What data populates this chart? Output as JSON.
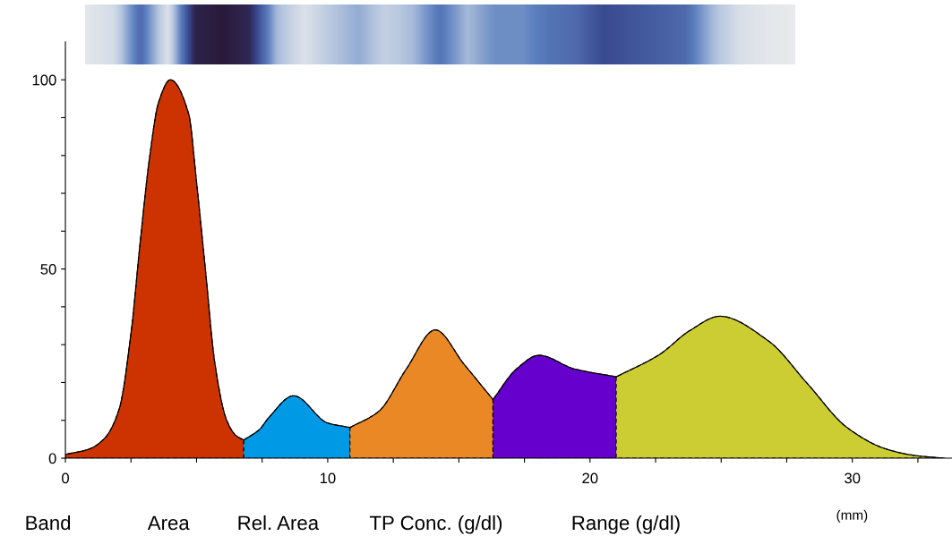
{
  "chart_data": {
    "type": "area",
    "xlabel": "(mm)",
    "xlim": [
      0,
      33.8
    ],
    "ylim": [
      0,
      110
    ],
    "xticks": [
      0,
      {
        "value": 2.5,
        "label": null
      },
      {
        "value": 5,
        "label": null
      },
      {
        "value": 7.5,
        "label": null
      },
      10,
      {
        "value": 12.5,
        "label": null
      },
      {
        "value": 15,
        "label": null
      },
      {
        "value": 17.5,
        "label": null
      },
      20,
      {
        "value": 22.5,
        "label": null
      },
      {
        "value": 25,
        "label": null
      },
      {
        "value": 27.5,
        "label": null
      },
      30,
      {
        "value": 32.5,
        "label": null
      }
    ],
    "yticks": [
      0,
      {
        "value": 10,
        "label": null
      },
      {
        "value": 20,
        "label": null
      },
      {
        "value": 30,
        "label": null
      },
      {
        "value": 40,
        "label": null
      },
      50,
      {
        "value": 60,
        "label": null
      },
      {
        "value": 70,
        "label": null
      },
      {
        "value": 80,
        "label": null
      },
      {
        "value": 90,
        "label": null
      },
      100
    ],
    "grid": false,
    "legend": false,
    "series": [
      {
        "color": "#cc3300",
        "x": [
          0,
          0.9,
          1.5,
          2.05,
          2.5,
          2.85,
          3.2,
          3.55,
          4.0,
          4.7,
          5.0,
          5.35,
          5.7,
          6.15,
          6.5,
          6.8
        ],
        "values": [
          1,
          2.4,
          5.3,
          13,
          33,
          57,
          79,
          94,
          100,
          91,
          73,
          49,
          25,
          10,
          6,
          4.8
        ]
      },
      {
        "color": "#0099e6",
        "x": [
          6.8,
          7.4,
          7.75,
          8.7,
          10.0,
          10.85
        ],
        "values": [
          4.8,
          7.6,
          10.7,
          16.5,
          9.3,
          8.1
        ]
      },
      {
        "color": "#eb8826",
        "x": [
          10.85,
          11.95,
          13.0,
          14.1,
          15.2,
          16.3
        ],
        "values": [
          8.1,
          12.4,
          23.6,
          33.9,
          24.8,
          15.5
        ]
      },
      {
        "color": "#6600cc",
        "x": [
          16.3,
          17.2,
          18.05,
          19.4,
          21.0
        ],
        "values": [
          15.5,
          23.6,
          27.2,
          23.6,
          21.5
        ]
      },
      {
        "color": "#cccc33",
        "x": [
          21.0,
          22.65,
          23.8,
          24.95,
          26.8,
          28.3,
          29.8,
          31.3,
          32.4,
          33.5
        ],
        "values": [
          21.5,
          27.4,
          33.7,
          37.5,
          31,
          19.6,
          8.1,
          2.4,
          0.7,
          0
        ]
      }
    ],
    "annotations": [
      "Band",
      "Area",
      "Rel. Area",
      "TP Conc. (g/dl)",
      "Range (g/dl)"
    ]
  }
}
